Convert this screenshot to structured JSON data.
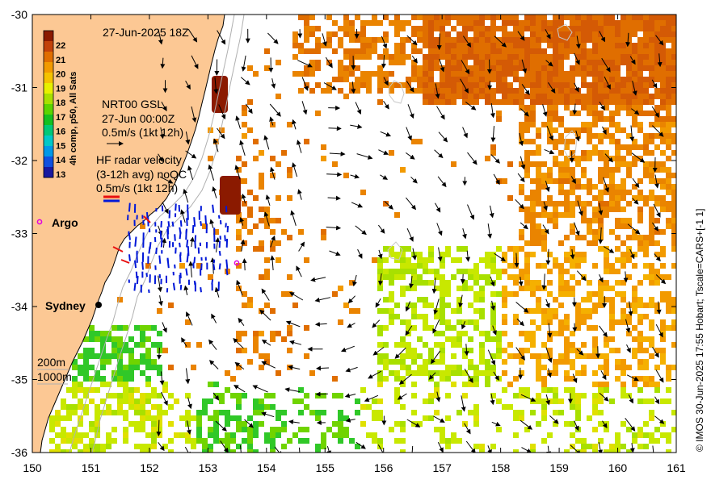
{
  "map": {
    "date_label": "27-Jun-2025 18Z",
    "colorbar": {
      "title": "4h comp, p50, All Sats",
      "ticks": [
        "22",
        "21",
        "20",
        "19",
        "18",
        "17",
        "16",
        "15",
        "14",
        "13"
      ],
      "colors": [
        "#8b1a00",
        "#c2410a",
        "#e06e00",
        "#f29a00",
        "#f5c200",
        "#e8f000",
        "#a8e000",
        "#5cd400",
        "#14c020",
        "#00c878",
        "#00c8c8",
        "#0098e8",
        "#1050e0",
        "#1818a0"
      ]
    },
    "gsl_legend": {
      "line1": "NRT00 GSL",
      "line2": "27-Jun 00:00Z",
      "line3": "0.5m/s (1kt 12h)"
    },
    "hf_legend": {
      "line1": "HF radar velocity",
      "line2": "(3-12h avg) noQC",
      "line3": "0.5m/s (1kt 12h)"
    },
    "argo_label": "Argo",
    "city_label": "Sydney",
    "contour_legend": {
      "c200": "200m",
      "c1000": "1000m"
    },
    "x_ticks": [
      "150",
      "151",
      "152",
      "153",
      "154",
      "155",
      "156",
      "157",
      "158",
      "159",
      "160",
      "161"
    ],
    "y_ticks": [
      "-30",
      "-31",
      "-32",
      "-33",
      "-34",
      "-35",
      "-36"
    ],
    "credit": "© IMOS 30-Jun-2025 17:55 Hobart; Tscale=CARS+[-1 1]",
    "colors": {
      "land": "#fcc894",
      "hf_arrow_a": "#e81010",
      "hf_arrow_b": "#0018d8",
      "argo": "#e000e0"
    }
  }
}
